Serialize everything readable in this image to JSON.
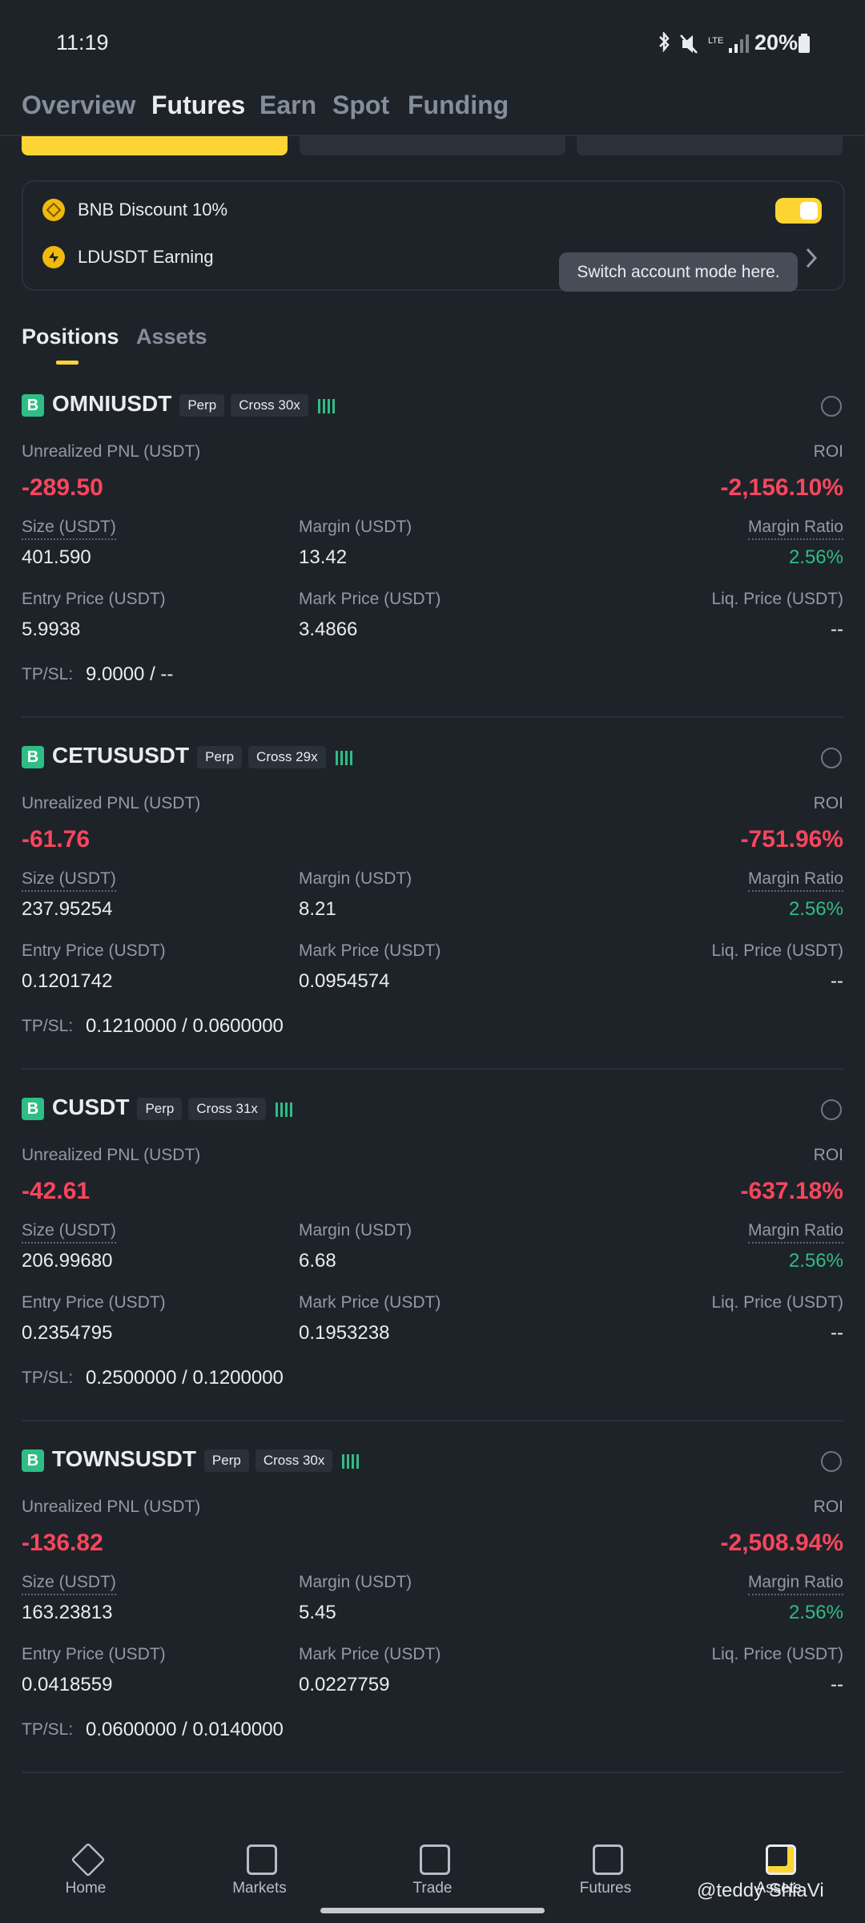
{
  "status": {
    "time": "11:19",
    "battery": "20%"
  },
  "tabs": [
    "Overview",
    "Futures",
    "Earn",
    "Spot",
    "Funding"
  ],
  "settings": {
    "bnb": "BNB Discount 10%",
    "ld": "LDUSDT Earning",
    "tooltip": "Switch account mode here."
  },
  "subtabs": [
    "Positions",
    "Assets"
  ],
  "labels": {
    "pnl": "Unrealized PNL (USDT)",
    "roi": "ROI",
    "size": "Size (USDT)",
    "margin": "Margin (USDT)",
    "ratio": "Margin Ratio",
    "entry": "Entry Price (USDT)",
    "mark": "Mark Price (USDT)",
    "liq": "Liq. Price (USDT)",
    "tpsl": "TP/SL:"
  },
  "positions": [
    {
      "side": "B",
      "symbol": "OMNIUSDT",
      "type": "Perp",
      "mode": "Cross 30x",
      "pnl": "-289.50",
      "roi": "-2,156.10%",
      "size": "401.590",
      "margin": "13.42",
      "ratio": "2.56%",
      "entry": "5.9938",
      "mark": "3.4866",
      "liq": "--",
      "tpsl": "9.0000 / --"
    },
    {
      "side": "B",
      "symbol": "CETUSUSDT",
      "type": "Perp",
      "mode": "Cross 29x",
      "pnl": "-61.76",
      "roi": "-751.96%",
      "size": "237.95254",
      "margin": "8.21",
      "ratio": "2.56%",
      "entry": "0.1201742",
      "mark": "0.0954574",
      "liq": "--",
      "tpsl": "0.1210000 / 0.0600000"
    },
    {
      "side": "B",
      "symbol": "CUSDT",
      "type": "Perp",
      "mode": "Cross 31x",
      "pnl": "-42.61",
      "roi": "-637.18%",
      "size": "206.99680",
      "margin": "6.68",
      "ratio": "2.56%",
      "entry": "0.2354795",
      "mark": "0.1953238",
      "liq": "--",
      "tpsl": "0.2500000 / 0.1200000"
    },
    {
      "side": "B",
      "symbol": "TOWNSUSDT",
      "type": "Perp",
      "mode": "Cross 30x",
      "pnl": "-136.82",
      "roi": "-2,508.94%",
      "size": "163.23813",
      "margin": "5.45",
      "ratio": "2.56%",
      "entry": "0.0418559",
      "mark": "0.0227759",
      "liq": "--",
      "tpsl": "0.0600000 / 0.0140000"
    }
  ],
  "nav": [
    "Home",
    "Markets",
    "Trade",
    "Futures",
    "Assets"
  ],
  "watermark": "@teddy ShiaVi"
}
